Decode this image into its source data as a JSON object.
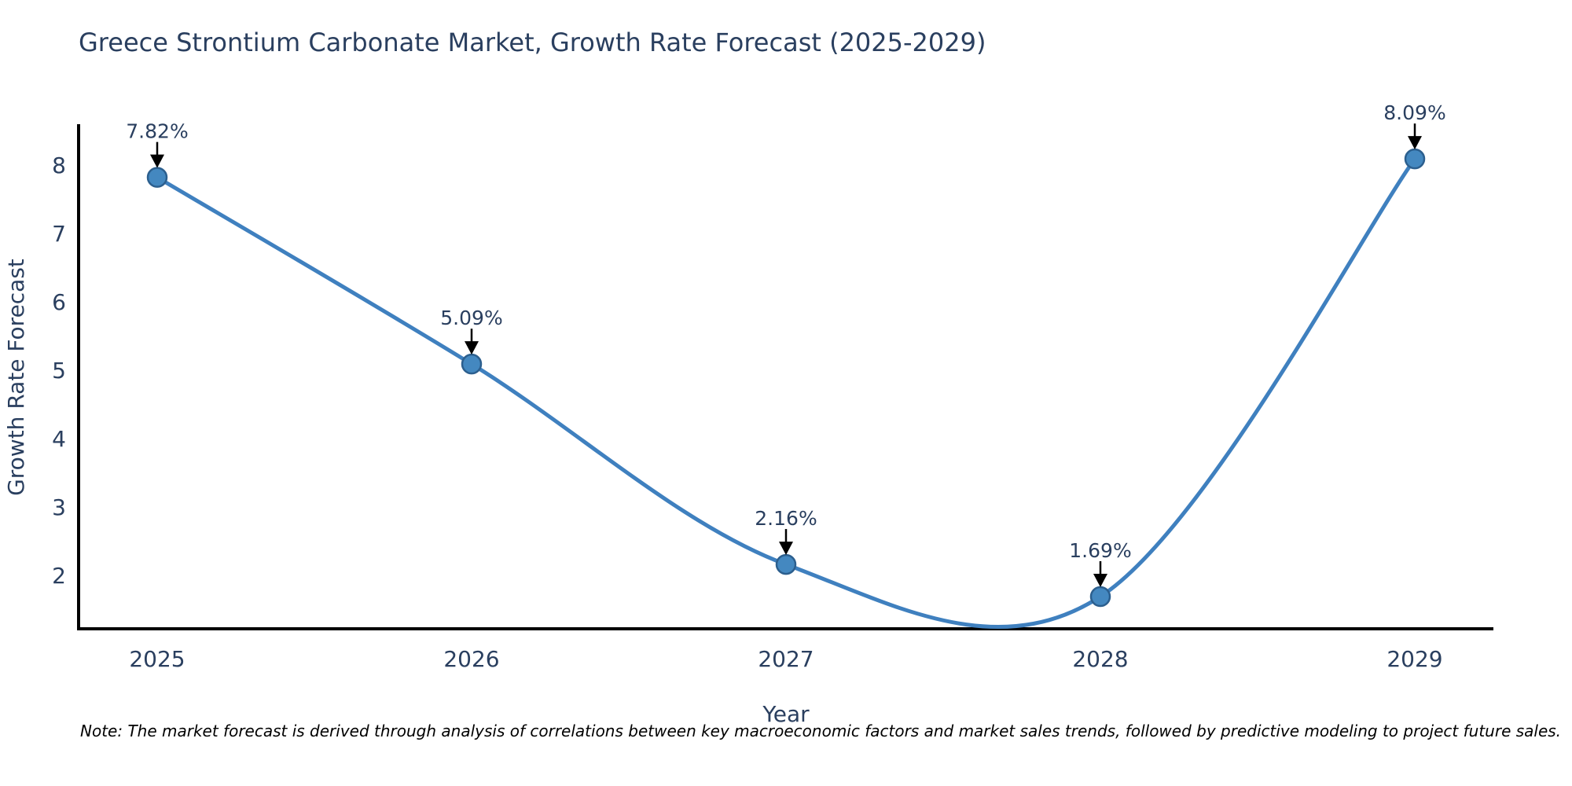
{
  "title": "Greece Strontium Carbonate Market, Growth Rate Forecast (2025-2029)",
  "note": "Note: The market forecast is derived through analysis of correlations between key macroeconomic factors and market sales trends, followed by predictive modeling to project future sales.",
  "colors": {
    "background": "#ffffff",
    "title_text": "#2a3f5f",
    "tick_text": "#2a3f5f",
    "axis_line": "#000000",
    "line": "#3f80bf",
    "marker_fill": "#4488c0",
    "marker_edge": "#2c5f8e",
    "annotation_text": "#2a3f5f",
    "arrow": "#000000",
    "note_text": "#000000"
  },
  "chart_data": {
    "type": "line",
    "title": "Greece Strontium Carbonate Market, Growth Rate Forecast (2025-2029)",
    "x": [
      "2025",
      "2026",
      "2027",
      "2028",
      "2029"
    ],
    "values": [
      7.82,
      5.09,
      2.16,
      1.69,
      8.09
    ],
    "point_labels": [
      "7.82%",
      "5.09%",
      "2.16%",
      "1.69%",
      "8.09%"
    ],
    "xlabel": "Year",
    "ylabel": "Growth Rate Forecast",
    "yticks": [
      2,
      3,
      4,
      5,
      6,
      7,
      8
    ],
    "ylim": [
      1.2,
      8.6
    ],
    "line_shape": "spline",
    "markers": true,
    "grid": false,
    "legend": "none",
    "annotation_style": "down-arrow-to-point"
  }
}
